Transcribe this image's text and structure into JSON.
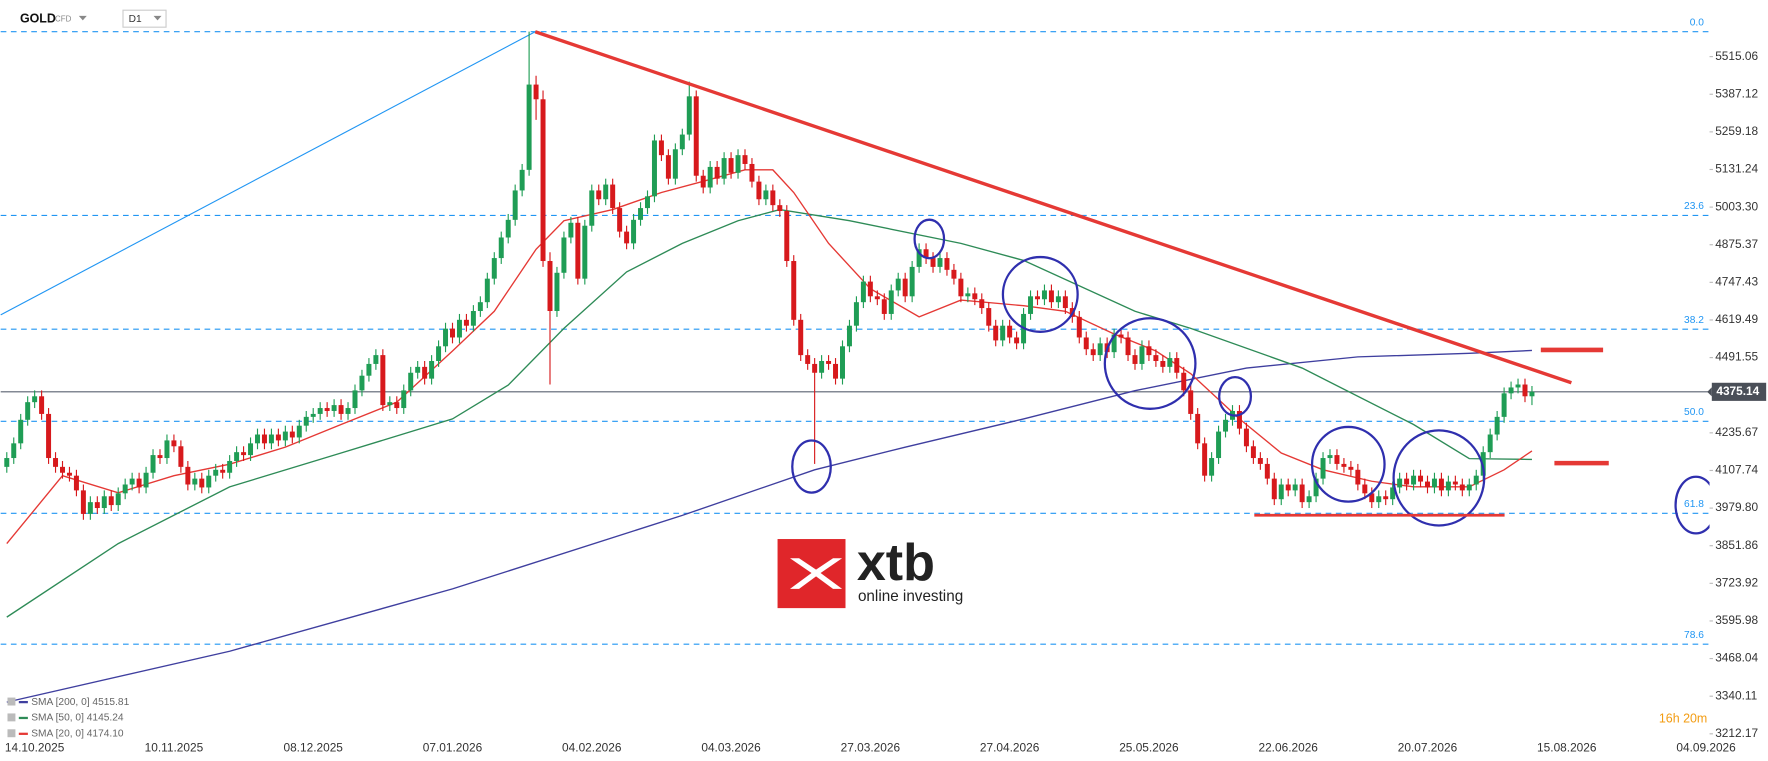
{
  "header": {
    "symbol": "GOLD",
    "market": "CFD",
    "interval": "D1"
  },
  "logo": {
    "name": "xtb",
    "tagline": "online investing"
  },
  "countdown": "16h 20m",
  "chart_data": {
    "type": "candlestick",
    "up_color": "#1f9d55",
    "down_color": "#d7191c",
    "ylim": [
      3204.46,
      5707.61
    ],
    "yticks": [
      5515.06,
      5387.12,
      5259.18,
      5131.24,
      {
        "value": 5003.3,
        "label": "5003.30"
      },
      4875.37,
      4747.43,
      4619.49,
      4491.55,
      4235.67,
      4107.74,
      {
        "value": 3979.8,
        "label": "3979.80"
      },
      3851.86,
      3723.92,
      3595.98,
      3468.04,
      3340.11,
      3212.17
    ],
    "last_price": 4375.14,
    "categories": [
      null,
      null,
      null,
      null,
      "14.10.2025",
      null,
      null,
      null,
      null,
      null,
      null,
      null,
      null,
      null,
      null,
      null,
      null,
      null,
      null,
      null,
      null,
      null,
      null,
      null,
      "10.11.2025",
      null,
      null,
      null,
      null,
      null,
      null,
      null,
      null,
      null,
      null,
      null,
      null,
      null,
      null,
      null,
      null,
      null,
      null,
      null,
      "08.12.2025",
      null,
      null,
      null,
      null,
      null,
      null,
      null,
      null,
      null,
      null,
      null,
      null,
      null,
      null,
      null,
      null,
      null,
      null,
      null,
      "07.01.2026",
      null,
      null,
      null,
      null,
      null,
      null,
      null,
      null,
      null,
      null,
      null,
      null,
      null,
      null,
      null,
      null,
      null,
      null,
      null,
      "04.02.2026",
      null,
      null,
      null,
      null,
      null,
      null,
      null,
      null,
      null,
      null,
      null,
      null,
      null,
      null,
      null,
      null,
      null,
      null,
      null,
      "04.03.2026",
      null,
      null,
      null,
      null,
      null,
      null,
      null,
      null,
      null,
      null,
      null,
      null,
      null,
      null,
      null,
      null,
      null,
      null,
      null,
      "27.03.2026",
      null,
      null,
      null,
      null,
      null,
      null,
      null,
      null,
      null,
      null,
      null,
      null,
      null,
      null,
      null,
      null,
      null,
      null,
      null,
      "27.04.2026",
      null,
      null,
      null,
      null,
      null,
      null,
      null,
      null,
      null,
      null,
      null,
      null,
      null,
      null,
      null,
      null,
      null,
      null,
      null,
      "25.05.2026",
      null,
      null,
      null,
      null,
      null,
      null,
      null,
      null,
      null,
      null,
      null,
      null,
      null,
      null,
      null,
      null,
      null,
      null,
      null,
      "22.06.2026",
      null,
      null,
      null,
      null,
      null,
      null,
      null,
      null,
      null,
      null,
      null,
      null,
      null,
      null,
      null,
      null,
      null,
      null,
      null,
      "20.07.2026",
      null,
      null,
      null,
      null,
      null,
      null,
      null,
      null,
      null,
      null,
      null,
      null,
      null,
      null,
      null,
      null,
      null,
      null,
      null,
      "15.08.2026",
      null,
      null,
      null,
      null,
      null,
      null,
      null,
      null,
      null,
      null,
      null,
      null,
      null,
      null,
      null,
      null,
      null,
      null,
      null,
      "04.09.2026"
    ],
    "open": [
      4120,
      4150,
      4200,
      4280,
      4340,
      4360,
      4300,
      4150,
      4120,
      4100,
      4090,
      4040,
      3960,
      4000,
      3980,
      4020,
      3990,
      4030,
      4060,
      4080,
      4050,
      4100,
      4160,
      4150,
      4210,
      4190,
      4120,
      4060,
      4080,
      4050,
      4090,
      4110,
      4100,
      4140,
      4170,
      4160,
      4200,
      4230,
      4200,
      4230,
      4210,
      4240,
      4220,
      4260,
      4290,
      4300,
      4320,
      4310,
      4330,
      4300,
      4320,
      4380,
      4430,
      4470,
      4500,
      4330,
      4340,
      4320,
      4380,
      4440,
      4460,
      4420,
      4480,
      4530,
      4590,
      4560,
      4620,
      4600,
      4650,
      4680,
      4760,
      4830,
      4900,
      4960,
      5060,
      5130,
      5420,
      5370,
      4820,
      4650,
      4780,
      4900,
      4950,
      4760,
      4940,
      5060,
      5030,
      5080,
      5000,
      4920,
      4880,
      4960,
      5000,
      5040,
      5230,
      5180,
      5100,
      5200,
      5250,
      5380,
      5110,
      5070,
      5140,
      5100,
      5170,
      5120,
      5180,
      5150,
      5090,
      5030,
      5060,
      5010,
      4990,
      4820,
      4620,
      4500,
      4470,
      4440,
      4480,
      4470,
      4420,
      4530,
      4600,
      4680,
      4750,
      4700,
      4690,
      4640,
      4720,
      4760,
      4700,
      4800,
      4860,
      4830,
      4800,
      4830,
      4790,
      4760,
      4700,
      4710,
      4690,
      4660,
      4600,
      4550,
      4600,
      4560,
      4540,
      4640,
      4700,
      4690,
      4720,
      4680,
      4700,
      4660,
      4630,
      4560,
      4520,
      4500,
      4540,
      4510,
      4570,
      4560,
      4500,
      4470,
      4530,
      4500,
      4480,
      4460,
      4490,
      4440,
      4380,
      4300,
      4200,
      4090,
      4150,
      4240,
      4280,
      4310,
      4250,
      4190,
      4150,
      4130,
      4080,
      4010,
      4060,
      4040,
      4060,
      4000,
      4020,
      4080,
      4150,
      4160,
      4130,
      4120,
      4110,
      4060,
      4030,
      4000,
      4020,
      4010,
      4050,
      4080,
      4060,
      4090,
      4070,
      4050,
      4080,
      4040,
      4070,
      4060,
      4040,
      4060,
      4090,
      4170,
      4230,
      4290,
      4370,
      4390,
      4400,
      4360,
      null,
      null,
      null,
      null,
      null,
      null,
      null,
      null,
      null,
      null,
      null,
      null,
      null,
      null,
      null,
      null,
      null,
      null,
      null,
      null,
      null,
      null,
      null,
      null,
      null
    ],
    "high": [
      4170,
      4220,
      4300,
      4360,
      4380,
      4380,
      4320,
      4170,
      4140,
      4120,
      4110,
      4060,
      4020,
      4020,
      4040,
      4040,
      4050,
      4080,
      4100,
      4100,
      4120,
      4180,
      4180,
      4230,
      4230,
      4210,
      4140,
      4100,
      4100,
      4110,
      4130,
      4130,
      4160,
      4190,
      4190,
      4220,
      4250,
      4250,
      4250,
      4250,
      4260,
      4260,
      4280,
      4310,
      4320,
      4340,
      4340,
      4350,
      4350,
      4340,
      4400,
      4450,
      4490,
      4520,
      4520,
      4360,
      4360,
      4400,
      4460,
      4480,
      4480,
      4500,
      4550,
      4610,
      4610,
      4640,
      4640,
      4670,
      4700,
      4780,
      4850,
      4920,
      4980,
      5080,
      5150,
      5600,
      5450,
      5400,
      4850,
      4800,
      4920,
      4970,
      4970,
      4960,
      5080,
      5080,
      5100,
      5100,
      5020,
      4940,
      4980,
      5020,
      5060,
      5250,
      5250,
      5200,
      5220,
      5270,
      5430,
      5400,
      5130,
      5160,
      5160,
      5190,
      5190,
      5200,
      5200,
      5170,
      5110,
      5080,
      5080,
      5030,
      5010,
      4840,
      4640,
      4520,
      4490,
      4500,
      4500,
      4490,
      4550,
      4620,
      4700,
      4770,
      4770,
      4720,
      4710,
      4740,
      4780,
      4780,
      4820,
      4880,
      4880,
      4850,
      4850,
      4850,
      4810,
      4780,
      4730,
      4730,
      4710,
      4680,
      4620,
      4620,
      4620,
      4580,
      4660,
      4720,
      4720,
      4740,
      4740,
      4720,
      4720,
      4680,
      4650,
      4580,
      4540,
      4560,
      4560,
      4590,
      4590,
      4580,
      4520,
      4550,
      4550,
      4520,
      4500,
      4510,
      4510,
      4460,
      4400,
      4320,
      4220,
      4170,
      4260,
      4300,
      4330,
      4330,
      4270,
      4210,
      4170,
      4150,
      4100,
      4080,
      4080,
      4080,
      4080,
      4040,
      4100,
      4170,
      4180,
      4180,
      4150,
      4140,
      4130,
      4080,
      4050,
      4040,
      4040,
      4070,
      4100,
      4100,
      4110,
      4110,
      4090,
      4100,
      4100,
      4090,
      4090,
      4080,
      4080,
      4110,
      4190,
      4250,
      4310,
      4390,
      4410,
      4420,
      4420,
      4395,
      null,
      null,
      null,
      null,
      null,
      null,
      null,
      null,
      null,
      null,
      null,
      null,
      null,
      null,
      null,
      null,
      null,
      null,
      null,
      null,
      null,
      null,
      null,
      null,
      null
    ],
    "low": [
      4100,
      4130,
      4180,
      4260,
      4320,
      4280,
      4130,
      4100,
      4080,
      4070,
      4020,
      3940,
      3940,
      3960,
      3960,
      3970,
      3970,
      4010,
      4040,
      4030,
      4030,
      4080,
      4130,
      4130,
      4170,
      4100,
      4040,
      4040,
      4030,
      4030,
      4070,
      4080,
      4080,
      4120,
      4140,
      4140,
      4180,
      4180,
      4180,
      4190,
      4190,
      4200,
      4200,
      4240,
      4270,
      4280,
      4290,
      4290,
      4280,
      4280,
      4300,
      4360,
      4410,
      4450,
      4310,
      4310,
      4300,
      4300,
      4360,
      4420,
      4400,
      4400,
      4460,
      4510,
      4540,
      4540,
      4580,
      4580,
      4630,
      4660,
      4740,
      4810,
      4880,
      4940,
      5040,
      5110,
      5300,
      4800,
      4400,
      4630,
      4760,
      4880,
      4740,
      4740,
      4920,
      5010,
      5010,
      4980,
      4900,
      4860,
      4860,
      4940,
      4980,
      5020,
      5160,
      5080,
      5080,
      5180,
      5230,
      5090,
      5050,
      5050,
      5080,
      5080,
      5100,
      5100,
      5130,
      5070,
      5010,
      5010,
      4990,
      4970,
      4800,
      4600,
      4480,
      4450,
      4130,
      4420,
      4450,
      4400,
      4400,
      4510,
      4580,
      4660,
      4680,
      4670,
      4620,
      4620,
      4700,
      4680,
      4680,
      4780,
      4810,
      4780,
      4780,
      4770,
      4740,
      4680,
      4680,
      4670,
      4640,
      4580,
      4530,
      4530,
      4540,
      4520,
      4520,
      4620,
      4670,
      4670,
      4660,
      4660,
      4640,
      4610,
      4540,
      4500,
      4480,
      4480,
      4490,
      4490,
      4540,
      4480,
      4450,
      4450,
      4480,
      4460,
      4440,
      4440,
      4420,
      4360,
      4280,
      4180,
      4070,
      4070,
      4130,
      4220,
      4260,
      4230,
      4170,
      4130,
      4110,
      4060,
      3990,
      3990,
      4020,
      4020,
      3980,
      3980,
      4000,
      4060,
      4130,
      4110,
      4100,
      4090,
      4040,
      4010,
      3980,
      3980,
      3990,
      3990,
      4030,
      4040,
      4040,
      4050,
      4030,
      4030,
      4020,
      4020,
      4040,
      4020,
      4020,
      4040,
      4070,
      4150,
      4210,
      4270,
      4350,
      4370,
      4340,
      4330,
      null,
      null,
      null,
      null,
      null,
      null,
      null,
      null,
      null,
      null,
      null,
      null,
      null,
      null,
      null,
      null,
      null,
      null,
      null,
      null,
      null,
      null,
      null,
      null,
      null
    ],
    "close": [
      4150,
      4200,
      4280,
      4340,
      4360,
      4300,
      4150,
      4120,
      4100,
      4090,
      4040,
      3960,
      4000,
      3980,
      4020,
      3990,
      4030,
      4060,
      4080,
      4050,
      4100,
      4160,
      4150,
      4210,
      4190,
      4120,
      4060,
      4080,
      4050,
      4090,
      4110,
      4100,
      4140,
      4170,
      4160,
      4200,
      4230,
      4200,
      4230,
      4210,
      4240,
      4220,
      4260,
      4290,
      4300,
      4320,
      4310,
      4330,
      4300,
      4320,
      4380,
      4430,
      4470,
      4500,
      4330,
      4340,
      4320,
      4380,
      4440,
      4460,
      4420,
      4480,
      4530,
      4590,
      4560,
      4620,
      4600,
      4650,
      4680,
      4760,
      4830,
      4900,
      4960,
      5060,
      5130,
      5420,
      5370,
      4820,
      4650,
      4780,
      4900,
      4950,
      4760,
      4940,
      5060,
      5030,
      5080,
      5000,
      4920,
      4880,
      4960,
      5000,
      5040,
      5230,
      5180,
      5100,
      5200,
      5250,
      5380,
      5110,
      5070,
      5140,
      5100,
      5170,
      5120,
      5180,
      5150,
      5090,
      5030,
      5060,
      5010,
      4990,
      4820,
      4620,
      4500,
      4470,
      4440,
      4480,
      4470,
      4420,
      4530,
      4600,
      4680,
      4750,
      4700,
      4690,
      4640,
      4720,
      4760,
      4700,
      4800,
      4860,
      4830,
      4800,
      4830,
      4790,
      4760,
      4700,
      4710,
      4690,
      4660,
      4600,
      4550,
      4600,
      4560,
      4540,
      4640,
      4700,
      4690,
      4720,
      4680,
      4700,
      4660,
      4630,
      4560,
      4520,
      4500,
      4540,
      4510,
      4570,
      4560,
      4500,
      4470,
      4530,
      4500,
      4480,
      4460,
      4490,
      4440,
      4380,
      4300,
      4200,
      4090,
      4150,
      4240,
      4280,
      4310,
      4250,
      4190,
      4150,
      4130,
      4080,
      4010,
      4060,
      4040,
      4060,
      4000,
      4020,
      4080,
      4150,
      4160,
      4130,
      4120,
      4110,
      4060,
      4030,
      4000,
      4020,
      4010,
      4050,
      4080,
      4060,
      4090,
      4070,
      4050,
      4080,
      4040,
      4070,
      4060,
      4040,
      4060,
      4090,
      4170,
      4230,
      4290,
      4370,
      4390,
      4400,
      4360,
      4375.14,
      null,
      null,
      null,
      null,
      null,
      null,
      null,
      null,
      null,
      null,
      null,
      null,
      null,
      null,
      null,
      null,
      null,
      null,
      null,
      null,
      null,
      null,
      null,
      null,
      null
    ],
    "series": [
      {
        "name": "SMA [200, 0] 4515.81",
        "color": "#3f3f9f",
        "x": [
          0,
          32,
          64,
          97,
          116,
          129,
          146,
          162,
          178,
          194,
          210,
          219
        ],
        "values": [
          3320,
          3493,
          3705,
          3955,
          4110,
          4187,
          4283,
          4379,
          4456,
          4494,
          4506,
          4515.81
        ]
      },
      {
        "name": "SMA [50, 0] 4145.24",
        "color": "#2e8b57",
        "x": [
          0,
          16,
          32,
          48,
          64,
          72,
          80,
          89,
          97,
          105,
          111,
          121,
          137,
          146,
          162,
          170,
          186,
          202,
          210,
          219
        ],
        "values": [
          3609,
          3859,
          4052,
          4167,
          4283,
          4398,
          4591,
          4783,
          4880,
          4957,
          4995,
          4957,
          4880,
          4822,
          4649,
          4591,
          4456,
          4264,
          4148,
          4145.24
        ]
      },
      {
        "name": "SMA [20, 0] 4174.10",
        "color": "#e53935",
        "x": [
          0,
          8,
          16,
          24,
          32,
          40,
          48,
          56,
          64,
          70,
          76,
          80,
          87,
          94,
          100,
          106,
          110,
          113,
          118,
          124,
          131,
          137,
          146,
          152,
          159,
          165,
          170,
          177,
          183,
          189,
          196,
          202,
          210,
          215,
          219
        ],
        "values": [
          3859,
          4090,
          4032,
          4090,
          4129,
          4187,
          4264,
          4340,
          4514,
          4649,
          4860,
          4957,
          4995,
          5053,
          5091,
          5130,
          5130,
          5053,
          4880,
          4726,
          4630,
          4687,
          4668,
          4649,
          4572,
          4514,
          4437,
          4283,
          4167,
          4110,
          4071,
          4052,
          4052,
          4110,
          4174.1
        ]
      }
    ],
    "fib_levels": [
      {
        "ratio": "0.0",
        "price": 5600
      },
      {
        "ratio": "23.6",
        "price": 4975
      },
      {
        "ratio": "38.2",
        "price": 4588
      },
      {
        "ratio": "50.0",
        "price": 4275
      },
      {
        "ratio": "61.8",
        "price": 3962
      },
      {
        "ratio": "78.6",
        "price": 3517
      }
    ],
    "fib_color": "#2196f3",
    "grid": false
  }
}
